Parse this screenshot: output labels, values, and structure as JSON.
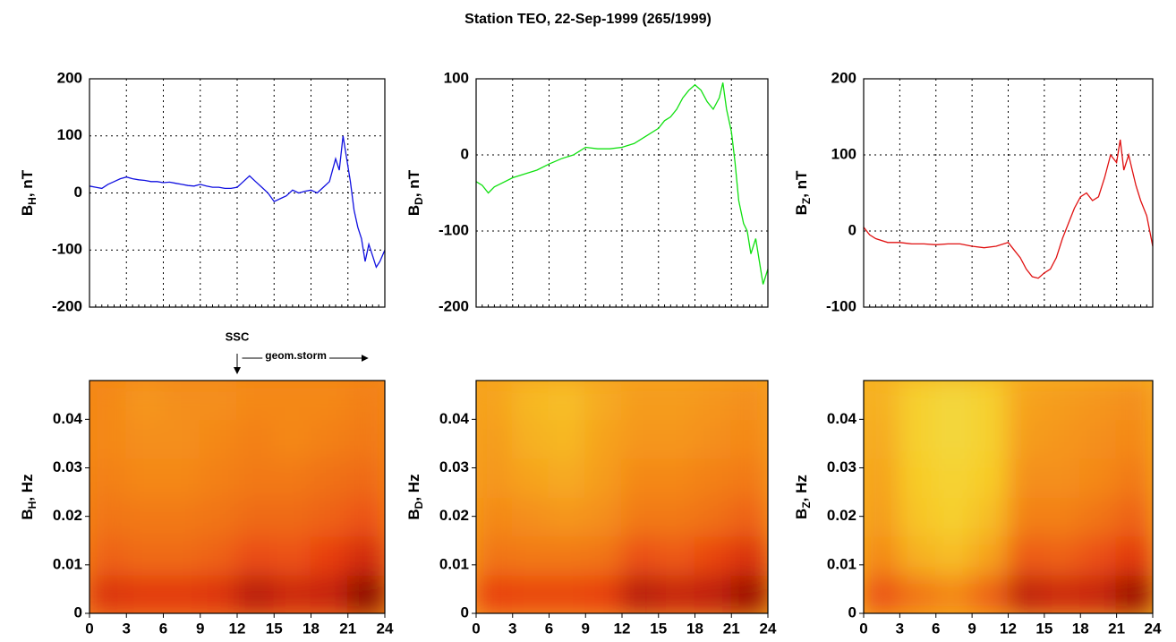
{
  "title": "Station TEO, 22-Sep-1999 (265/1999)",
  "chart_data": [
    {
      "type": "line",
      "ylabel": {
        "text": "B",
        "sub": "H",
        "suffix": ", nT"
      },
      "color": "#1010e0",
      "grid": true,
      "xlim": [
        0,
        24
      ],
      "xticks": [
        0,
        3,
        6,
        9,
        12,
        15,
        18,
        21,
        24
      ],
      "ylim": [
        -200,
        200
      ],
      "yticks": [
        -200,
        -100,
        0,
        100,
        200
      ],
      "x": [
        0,
        0.5,
        1,
        1.5,
        2,
        2.5,
        3,
        3.5,
        4,
        4.5,
        5,
        5.5,
        6,
        6.5,
        7,
        7.5,
        8,
        8.5,
        9,
        9.5,
        10,
        10.5,
        11,
        11.5,
        12,
        12.5,
        13,
        13.5,
        14,
        14.5,
        15,
        15.5,
        16,
        16.5,
        17,
        17.5,
        18,
        18.5,
        19,
        19.5,
        20,
        20.3,
        20.6,
        20.9,
        21.2,
        21.5,
        21.8,
        22.1,
        22.4,
        22.7,
        23,
        23.3,
        23.6,
        24
      ],
      "values": [
        12,
        10,
        8,
        15,
        20,
        25,
        28,
        25,
        23,
        22,
        20,
        20,
        18,
        19,
        17,
        15,
        13,
        12,
        15,
        12,
        10,
        10,
        8,
        8,
        10,
        20,
        30,
        20,
        10,
        0,
        -15,
        -10,
        -5,
        5,
        0,
        3,
        5,
        0,
        10,
        20,
        60,
        40,
        100,
        60,
        20,
        -30,
        -60,
        -80,
        -120,
        -90,
        -110,
        -130,
        -120,
        -100
      ]
    },
    {
      "type": "line",
      "ylabel": {
        "text": "B",
        "sub": "D",
        "suffix": ", nT"
      },
      "color": "#10e010",
      "grid": true,
      "xlim": [
        0,
        24
      ],
      "xticks": [
        0,
        3,
        6,
        9,
        12,
        15,
        18,
        21,
        24
      ],
      "ylim": [
        -200,
        100
      ],
      "yticks": [
        -200,
        -100,
        0,
        100
      ],
      "x": [
        0,
        0.5,
        1,
        1.5,
        2,
        3,
        4,
        5,
        6,
        7,
        8,
        8.5,
        9,
        10,
        11,
        12,
        13,
        14,
        15,
        15.5,
        16,
        16.5,
        17,
        17.5,
        18,
        18.5,
        19,
        19.5,
        20,
        20.3,
        20.6,
        21,
        21.3,
        21.6,
        22,
        22.3,
        22.6,
        23,
        23.3,
        23.6,
        24
      ],
      "values": [
        -35,
        -40,
        -50,
        -42,
        -38,
        -30,
        -25,
        -20,
        -12,
        -5,
        0,
        5,
        10,
        8,
        8,
        10,
        15,
        25,
        35,
        45,
        50,
        60,
        75,
        85,
        92,
        85,
        70,
        60,
        75,
        95,
        60,
        30,
        -10,
        -60,
        -90,
        -100,
        -130,
        -110,
        -140,
        -170,
        -150
      ]
    },
    {
      "type": "line",
      "ylabel": {
        "text": "B",
        "sub": "Z",
        "suffix": ", nT"
      },
      "color": "#e01010",
      "grid": true,
      "xlim": [
        0,
        24
      ],
      "xticks": [
        0,
        3,
        6,
        9,
        12,
        15,
        18,
        21,
        24
      ],
      "ylim": [
        -100,
        200
      ],
      "yticks": [
        -100,
        0,
        100,
        200
      ],
      "x": [
        0,
        0.5,
        1,
        2,
        3,
        4,
        5,
        6,
        7,
        8,
        9,
        10,
        11,
        12,
        12.5,
        13,
        13.5,
        14,
        14.5,
        15,
        15.5,
        16,
        16.5,
        17,
        17.5,
        18,
        18.5,
        19,
        19.5,
        20,
        20.5,
        21,
        21.3,
        21.6,
        22,
        22.3,
        22.6,
        23,
        23.5,
        24
      ],
      "values": [
        5,
        -5,
        -10,
        -15,
        -15,
        -17,
        -17,
        -18,
        -17,
        -17,
        -20,
        -22,
        -20,
        -15,
        -25,
        -35,
        -50,
        -60,
        -62,
        -55,
        -50,
        -35,
        -10,
        10,
        30,
        45,
        50,
        40,
        45,
        70,
        100,
        90,
        120,
        80,
        100,
        80,
        60,
        40,
        20,
        -20
      ]
    },
    {
      "type": "heatmap",
      "ylabel": {
        "text": "B",
        "sub": "H",
        "suffix": ", Hz"
      },
      "xlim": [
        0,
        24
      ],
      "xticks": [
        0,
        3,
        6,
        9,
        12,
        15,
        18,
        21,
        24
      ],
      "ylim": [
        0,
        0.048
      ],
      "yticks": [
        0,
        0.01,
        0.02,
        0.03,
        0.04
      ],
      "colormap": [
        "#4a0000",
        "#b01008",
        "#e83c10",
        "#f48818",
        "#f8cc28",
        "#e8f070"
      ],
      "x_bins": [
        0,
        3,
        6,
        9,
        12,
        15,
        18,
        21,
        24
      ],
      "y_bins": [
        0,
        0.008,
        0.016,
        0.024,
        0.032,
        0.04,
        0.048
      ],
      "z": [
        [
          0.35,
          0.38,
          0.38,
          0.36,
          0.22,
          0.3,
          0.28,
          0.12
        ],
        [
          0.5,
          0.52,
          0.52,
          0.5,
          0.44,
          0.46,
          0.4,
          0.32
        ],
        [
          0.55,
          0.56,
          0.56,
          0.55,
          0.52,
          0.52,
          0.5,
          0.46
        ],
        [
          0.58,
          0.6,
          0.6,
          0.58,
          0.56,
          0.56,
          0.54,
          0.52
        ],
        [
          0.6,
          0.62,
          0.62,
          0.6,
          0.58,
          0.6,
          0.58,
          0.56
        ],
        [
          0.6,
          0.64,
          0.62,
          0.62,
          0.6,
          0.6,
          0.6,
          0.58
        ]
      ],
      "annotations": [
        {
          "text": "SSC",
          "x": 12
        },
        {
          "text": "geom.storm",
          "x": [
            12.4,
            22.6
          ]
        }
      ]
    },
    {
      "type": "heatmap",
      "ylabel": {
        "text": "B",
        "sub": "D",
        "suffix": ", Hz"
      },
      "xlim": [
        0,
        24
      ],
      "xticks": [
        0,
        3,
        6,
        9,
        12,
        15,
        18,
        21,
        24
      ],
      "ylim": [
        0,
        0.048
      ],
      "yticks": [
        0,
        0.01,
        0.02,
        0.03,
        0.04
      ],
      "colormap": [
        "#4a0000",
        "#b01008",
        "#e83c10",
        "#f48818",
        "#f8cc28",
        "#e8f070"
      ],
      "x_bins": [
        0,
        3,
        6,
        9,
        12,
        15,
        18,
        21,
        24
      ],
      "y_bins": [
        0,
        0.008,
        0.016,
        0.024,
        0.032,
        0.04,
        0.048
      ],
      "z": [
        [
          0.4,
          0.42,
          0.42,
          0.4,
          0.22,
          0.28,
          0.25,
          0.15
        ],
        [
          0.55,
          0.56,
          0.56,
          0.55,
          0.45,
          0.48,
          0.42,
          0.35
        ],
        [
          0.6,
          0.62,
          0.64,
          0.62,
          0.56,
          0.56,
          0.54,
          0.5
        ],
        [
          0.64,
          0.68,
          0.7,
          0.66,
          0.6,
          0.6,
          0.58,
          0.56
        ],
        [
          0.66,
          0.72,
          0.74,
          0.68,
          0.64,
          0.64,
          0.62,
          0.6
        ],
        [
          0.68,
          0.74,
          0.76,
          0.7,
          0.66,
          0.66,
          0.64,
          0.62
        ]
      ]
    },
    {
      "type": "heatmap",
      "ylabel": {
        "text": "B",
        "sub": "Z",
        "suffix": ", Hz"
      },
      "xlim": [
        0,
        24
      ],
      "xticks": [
        0,
        3,
        6,
        9,
        12,
        15,
        18,
        21,
        24
      ],
      "ylim": [
        0,
        0.048
      ],
      "yticks": [
        0,
        0.01,
        0.02,
        0.03,
        0.04
      ],
      "colormap": [
        "#4a0000",
        "#b01008",
        "#e83c10",
        "#f48818",
        "#f8cc28",
        "#e8f070"
      ],
      "x_bins": [
        0,
        3,
        6,
        9,
        12,
        15,
        18,
        21,
        24
      ],
      "y_bins": [
        0,
        0.008,
        0.016,
        0.024,
        0.032,
        0.04,
        0.048
      ],
      "z": [
        [
          0.45,
          0.55,
          0.6,
          0.5,
          0.25,
          0.3,
          0.28,
          0.15
        ],
        [
          0.6,
          0.72,
          0.76,
          0.68,
          0.48,
          0.5,
          0.45,
          0.38
        ],
        [
          0.66,
          0.78,
          0.82,
          0.76,
          0.58,
          0.58,
          0.55,
          0.5
        ],
        [
          0.68,
          0.8,
          0.84,
          0.8,
          0.62,
          0.62,
          0.6,
          0.56
        ],
        [
          0.7,
          0.82,
          0.86,
          0.82,
          0.66,
          0.64,
          0.62,
          0.6
        ],
        [
          0.72,
          0.82,
          0.86,
          0.82,
          0.68,
          0.66,
          0.64,
          0.62
        ]
      ]
    }
  ]
}
